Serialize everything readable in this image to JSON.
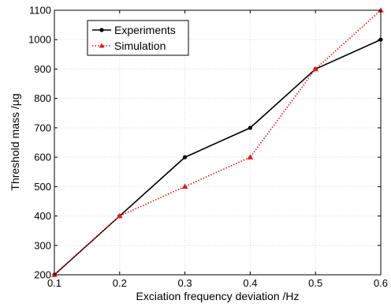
{
  "chart_data": {
    "type": "line",
    "title": "",
    "xlabel": "Exciation frequency deviation /Hz",
    "ylabel": "Threshold mass /μg",
    "x": [
      0.1,
      0.2,
      0.3,
      0.4,
      0.5,
      0.6
    ],
    "xlim": [
      0.1,
      0.6
    ],
    "ylim": [
      200,
      1100
    ],
    "x_ticks": [
      "0.1",
      "0.2",
      "0.3",
      "0.4",
      "0.5",
      "0.6"
    ],
    "y_ticks": [
      "200",
      "300",
      "400",
      "500",
      "600",
      "700",
      "800",
      "900",
      "1000",
      "1100"
    ],
    "grid": true,
    "legend_position": "top-left",
    "series": [
      {
        "name": "Experiments",
        "values": [
          200,
          400,
          600,
          700,
          900,
          1000
        ],
        "color": "#000000",
        "marker": "circle",
        "line_style": "solid"
      },
      {
        "name": "Simulation",
        "values": [
          200,
          400,
          500,
          600,
          900,
          1100
        ],
        "color": "#e8191c",
        "marker": "triangle",
        "line_style": "dotted"
      }
    ]
  }
}
